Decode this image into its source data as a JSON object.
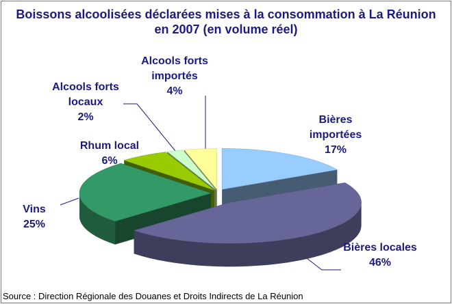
{
  "chart_data": {
    "type": "pie3d",
    "title": "Boissons alcoolisées déclarées mises à la consommation à La Réunion en 2007 (en volume réel)",
    "categories": [
      "Bières importées",
      "Bières locales",
      "Vins",
      "Rhum local",
      "Alcools forts locaux",
      "Alcools forts importés"
    ],
    "values": [
      17,
      46,
      25,
      6,
      2,
      4
    ],
    "value_labels": [
      "17%",
      "46%",
      "25%",
      "6%",
      "2%",
      "4%"
    ],
    "colors": [
      "#99ccff",
      "#666699",
      "#339966",
      "#99cc00",
      "#ccffcc",
      "#ffff99"
    ],
    "source": "Source : Direction Régionale des Douanes et Droits Indirects de La Réunion"
  }
}
